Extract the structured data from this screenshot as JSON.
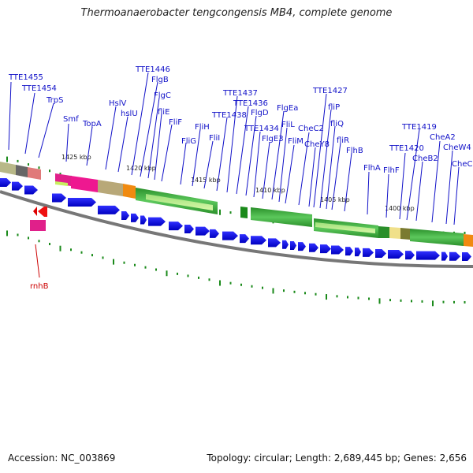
{
  "title": "Thermoanaerobacter tengcongensis MB4, complete genome",
  "footer": {
    "accession": "Accession: NC_003869",
    "summary": "Topology: circular; Length: 2,689,445 bp; Genes: 2,656"
  },
  "colors": {
    "gene_forward": "#0000ee",
    "label_blue": "#1010c8",
    "label_red": "#cc0000",
    "tick_green": "#1a8a1a",
    "backbone": "#777777"
  },
  "scale_ticks": [
    "1425 kbp",
    "1420 kbp",
    "1415 kbp",
    "1410 kbp",
    "1405 kbp",
    "1400 kbp"
  ],
  "gene_labels": [
    "TTE1455",
    "TTE1454",
    "TrpS",
    "Smf",
    "TopA",
    "HslV",
    "hslU",
    "TTE1446",
    "FlgB",
    "FlgC",
    "fliE",
    "FliF",
    "FliG",
    "FliH",
    "FliI",
    "TTE1438",
    "TTE1437",
    "TTE1436",
    "FlgD",
    "FlgEa",
    "TTE1434",
    "FlgE3",
    "FliL",
    "FliM",
    "CheC2",
    "CheY8",
    "TTE1427",
    "fliP",
    "fliQ",
    "fliR",
    "FlhB",
    "FlhA",
    "FlhF",
    "TTE1420",
    "TTE1419",
    "CheB2",
    "CheA2",
    "CheW4",
    "CheC"
  ],
  "reverse_labels": [
    "rnhB"
  ]
}
